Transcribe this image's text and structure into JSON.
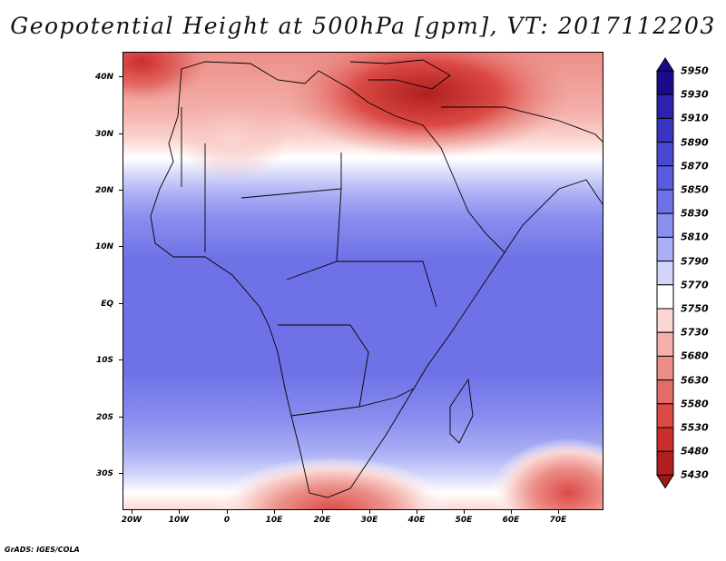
{
  "title": "Geopotential Height at 500hPa [gpm], VT: 2017112203",
  "credit": "GrADS: IGES/COLA",
  "map": {
    "lat_labels": [
      "40N",
      "30N",
      "20N",
      "10N",
      "EQ",
      "10S",
      "20S",
      "30S"
    ],
    "lon_labels": [
      "20W",
      "10W",
      "0",
      "10E",
      "20E",
      "30E",
      "40E",
      "50E",
      "60E",
      "70E"
    ]
  },
  "colorbar": {
    "levels": [
      "5950",
      "5930",
      "5910",
      "5890",
      "5870",
      "5850",
      "5830",
      "5810",
      "5790",
      "5770",
      "5750",
      "5730",
      "5680",
      "5630",
      "5580",
      "5530",
      "5480",
      "5430"
    ],
    "colors": [
      "#1a0a8c",
      "#2d22b0",
      "#3a34c4",
      "#4a48d2",
      "#5a5cde",
      "#6e72e6",
      "#8a8eee",
      "#aaaef4",
      "#d2d4fa",
      "#ffffff",
      "#fbd6d2",
      "#f4b0aa",
      "#ec8e88",
      "#e46c66",
      "#dc4a46",
      "#cc2e2c",
      "#b01e1e"
    ]
  }
}
